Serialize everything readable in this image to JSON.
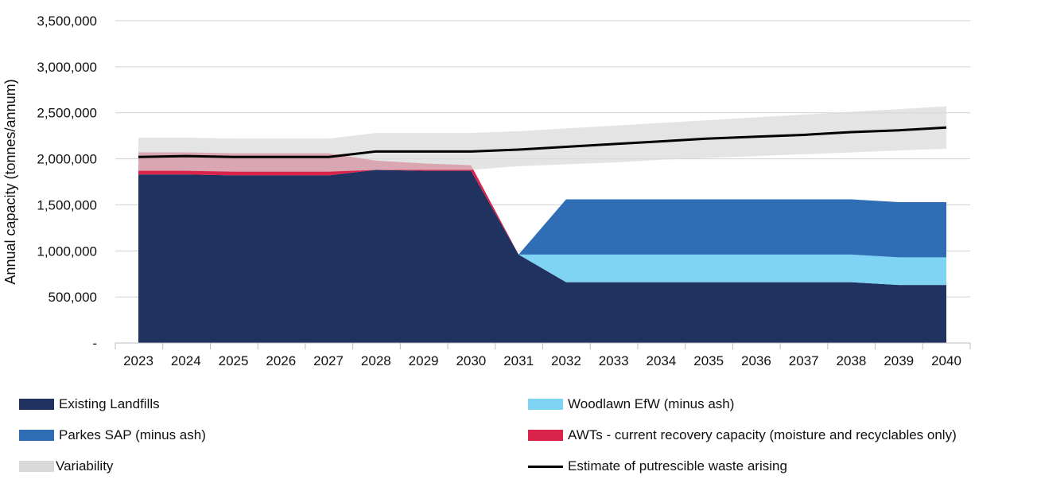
{
  "colors": {
    "existing": "#1f3260",
    "parkes": "#2f6db5",
    "woodlawn": "#7fd3f3",
    "awt": "#d9234a",
    "variability": "#d9d9d9",
    "estimate": "#000000",
    "grid": "#d0d0d0"
  },
  "chart_data": {
    "type": "area",
    "title": "",
    "xlabel": "",
    "ylabel": "Annual capacity (tonnes/annum)",
    "ylim": [
      0,
      3500000
    ],
    "y_ticks": [
      0,
      500000,
      1000000,
      1500000,
      2000000,
      2500000,
      3000000,
      3500000
    ],
    "y_tick_labels": [
      "-",
      "500,000",
      "1,000,000",
      "1,500,000",
      "2,000,000",
      "2,500,000",
      "3,000,000",
      "3,500,000"
    ],
    "categories": [
      "2023",
      "2024",
      "2025",
      "2026",
      "2027",
      "2028",
      "2029",
      "2030",
      "2031",
      "2032",
      "2033",
      "2034",
      "2035",
      "2036",
      "2037",
      "2038",
      "2039",
      "2040"
    ],
    "series": [
      {
        "name": "Existing Landfills",
        "key": "existing",
        "stacked": true,
        "values": [
          1830000,
          1830000,
          1820000,
          1820000,
          1820000,
          1880000,
          1870000,
          1870000,
          960000,
          660000,
          660000,
          660000,
          660000,
          660000,
          660000,
          660000,
          630000,
          630000
        ]
      },
      {
        "name": "Woodlawn EfW (minus ash)",
        "key": "woodlawn",
        "stacked": true,
        "values": [
          0,
          0,
          0,
          0,
          0,
          0,
          0,
          0,
          0,
          300000,
          300000,
          300000,
          300000,
          300000,
          300000,
          300000,
          300000,
          300000
        ]
      },
      {
        "name": "Parkes SAP (minus ash)",
        "key": "parkes",
        "stacked": true,
        "values": [
          0,
          0,
          0,
          0,
          0,
          0,
          0,
          0,
          0,
          600000,
          600000,
          600000,
          600000,
          600000,
          600000,
          600000,
          600000,
          600000
        ]
      },
      {
        "name": "AWTs - current recovery capacity (moisture and recyclables only)",
        "key": "awt",
        "stacked": true,
        "values": [
          240000,
          240000,
          240000,
          240000,
          240000,
          100000,
          80000,
          60000,
          0,
          0,
          0,
          0,
          0,
          0,
          0,
          0,
          0,
          0
        ]
      },
      {
        "name": "Variability",
        "key": "variability",
        "type": "band",
        "low": [
          1870000,
          1870000,
          1860000,
          1860000,
          1860000,
          1880000,
          1880000,
          1880000,
          1920000,
          1940000,
          1960000,
          1990000,
          2010000,
          2030000,
          2050000,
          2070000,
          2090000,
          2110000
        ],
        "high": [
          2230000,
          2230000,
          2220000,
          2220000,
          2220000,
          2280000,
          2280000,
          2280000,
          2300000,
          2330000,
          2360000,
          2390000,
          2420000,
          2450000,
          2480000,
          2510000,
          2540000,
          2570000
        ]
      },
      {
        "name": "Estimate of putrescible waste arising",
        "key": "estimate",
        "type": "line",
        "values": [
          2020000,
          2030000,
          2020000,
          2020000,
          2020000,
          2080000,
          2080000,
          2080000,
          2100000,
          2130000,
          2160000,
          2190000,
          2220000,
          2240000,
          2260000,
          2290000,
          2310000,
          2340000
        ]
      }
    ],
    "overlay_band": {
      "note": "Semi-transparent band drawn over stacked areas",
      "applies_to": "Variability"
    },
    "legend": [
      {
        "label": "Existing Landfills",
        "key": "existing",
        "kind": "swatch"
      },
      {
        "label": "Woodlawn EfW (minus ash)",
        "key": "woodlawn",
        "kind": "swatch"
      },
      {
        "label": "Parkes SAP (minus ash)",
        "key": "parkes",
        "kind": "swatch"
      },
      {
        "label": "AWTs - current recovery capacity (moisture and recyclables only)",
        "key": "awt",
        "kind": "swatch"
      },
      {
        "label": "Variability",
        "key": "variability",
        "kind": "swatch"
      },
      {
        "label": "Estimate of putrescible waste arising",
        "key": "estimate",
        "kind": "line"
      }
    ]
  }
}
